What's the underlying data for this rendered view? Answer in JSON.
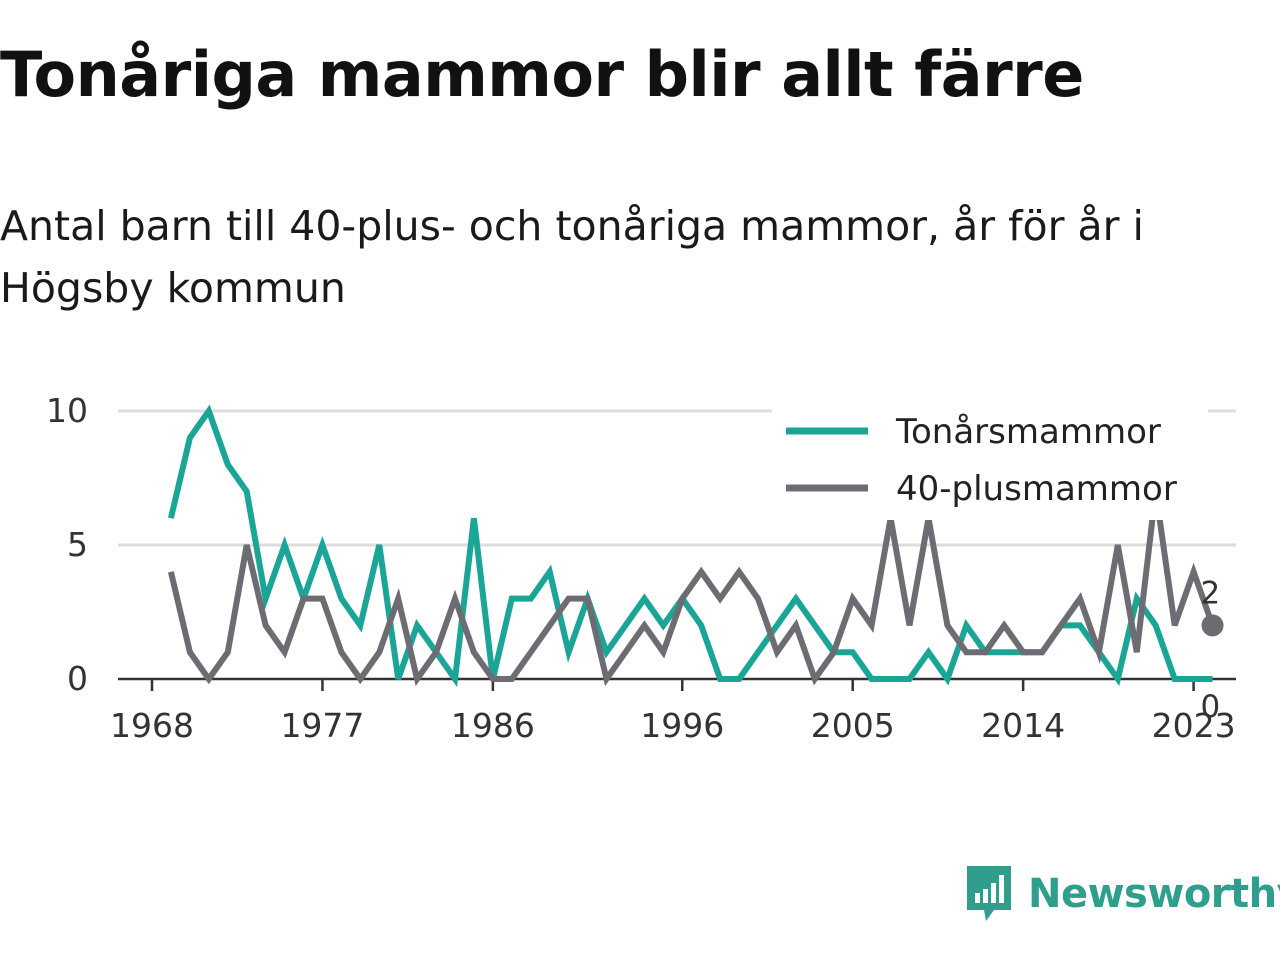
{
  "header": {
    "title": "Tonåriga mammor blir allt färre",
    "subtitle": "Antal barn till 40-plus- och tonåriga mammor, år för år i Högsby kommun"
  },
  "logo": {
    "icon": "newsworthy-bar-chart-icon",
    "text": "Newsworthy",
    "color": "#2f9e8d"
  },
  "chart_data": {
    "type": "line",
    "title": "",
    "xlabel": "",
    "ylabel": "",
    "x": [
      1969,
      1970,
      1971,
      1972,
      1973,
      1974,
      1975,
      1976,
      1977,
      1978,
      1979,
      1980,
      1981,
      1982,
      1983,
      1984,
      1985,
      1986,
      1987,
      1988,
      1989,
      1990,
      1991,
      1992,
      1993,
      1994,
      1995,
      1996,
      1997,
      1998,
      1999,
      2000,
      2001,
      2002,
      2003,
      2004,
      2005,
      2006,
      2007,
      2008,
      2009,
      2010,
      2011,
      2012,
      2013,
      2014,
      2015,
      2016,
      2017,
      2018,
      2019,
      2020,
      2021,
      2022,
      2023,
      2024
    ],
    "xlim": [
      1968,
      2024.5
    ],
    "ylim": [
      0,
      10
    ],
    "x_ticks": [
      "1968",
      "1977",
      "1986",
      "1996",
      "2005",
      "2014",
      "2023"
    ],
    "y_ticks": [
      "0",
      "5",
      "10"
    ],
    "grid": true,
    "legend_position": "top-right",
    "series": [
      {
        "name": "Tonårsmammor",
        "color": "#1aa596",
        "values": [
          6,
          9,
          10,
          8,
          7,
          3,
          5,
          3,
          5,
          3,
          2,
          5,
          0,
          2,
          1,
          0,
          6,
          0,
          3,
          3,
          4,
          1,
          3,
          1,
          2,
          3,
          2,
          3,
          2,
          0,
          0,
          1,
          2,
          3,
          2,
          1,
          1,
          0,
          0,
          0,
          1,
          0,
          2,
          1,
          1,
          1,
          1,
          2,
          2,
          1,
          0,
          3,
          2,
          0,
          0,
          0
        ],
        "end_label": "0"
      },
      {
        "name": "40-plusmammor",
        "color": "#6e6c73",
        "values": [
          4,
          1,
          0,
          1,
          5,
          2,
          1,
          3,
          3,
          1,
          0,
          1,
          3,
          0,
          1,
          3,
          1,
          0,
          0,
          1,
          2,
          3,
          3,
          0,
          1,
          2,
          1,
          3,
          4,
          3,
          4,
          3,
          1,
          2,
          0,
          1,
          3,
          2,
          6,
          2,
          6,
          2,
          1,
          1,
          2,
          1,
          1,
          2,
          3,
          1,
          5,
          1,
          7,
          2,
          4,
          2
        ],
        "end_label": "2"
      }
    ]
  }
}
